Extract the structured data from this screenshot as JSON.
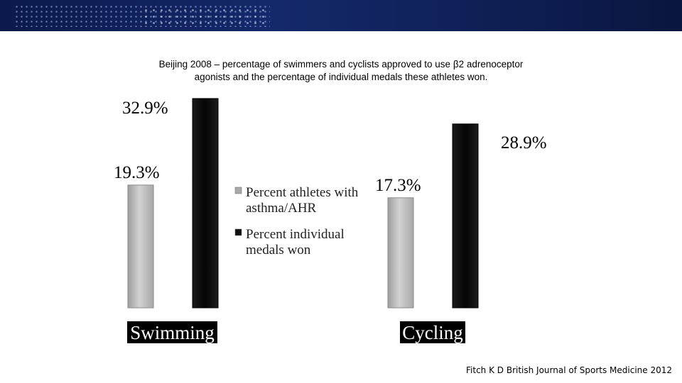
{
  "banner": {
    "decor": "dotted-world-map-icon"
  },
  "chart_data": {
    "type": "bar",
    "title": "Beijing 2008 – percentage of swimmers and cyclists approved to use β2 adrenoceptor\nagonists and the percentage of individual medals these athletes won.",
    "categories": [
      "Swimming",
      "Cycling"
    ],
    "series": [
      {
        "name": "Percent athletes with asthma/AHR",
        "values": [
          19.3,
          17.3
        ],
        "labels": [
          "19.3%",
          "17.3%"
        ],
        "color": "#bdbdbd"
      },
      {
        "name": "Percent individual medals won",
        "values": [
          32.9,
          28.9
        ],
        "labels": [
          "32.9%",
          "28.9%"
        ],
        "color": "#111111"
      }
    ],
    "ylim": [
      0,
      33
    ],
    "grid": false,
    "legend_position": "center"
  },
  "legend": {
    "lines": [
      [
        "Percent athletes with",
        "asthma/AHR"
      ],
      [
        "Percent individual",
        "medals won"
      ]
    ]
  },
  "citation": "Fitch K D British Journal of Sports Medicine 2012"
}
